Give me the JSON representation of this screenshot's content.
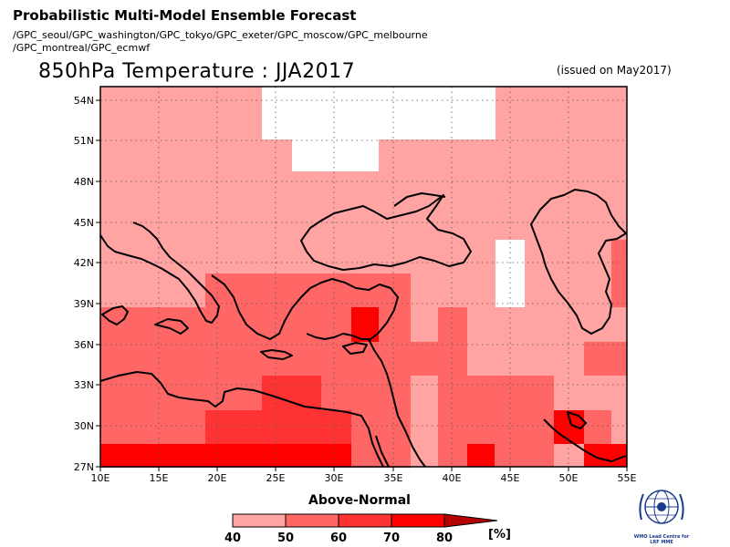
{
  "header": {
    "title": "Probabilistic Multi-Model Ensemble Forecast",
    "models_line1": "/GPC_seoul/GPC_washington/GPC_tokyo/GPC_exeter/GPC_moscow/GPC_melbourne",
    "models_line2": "/GPC_montreal/GPC_ecmwf",
    "subtitle": "850hPa Temperature : JJA2017",
    "issued": "(issued on May2017)"
  },
  "map": {
    "lon_range": [
      10,
      55
    ],
    "lat_range": [
      27,
      55
    ],
    "lon_ticks": [
      "10E",
      "15E",
      "20E",
      "25E",
      "30E",
      "35E",
      "40E",
      "45E",
      "50E",
      "55E"
    ],
    "lat_ticks": [
      "27N",
      "30N",
      "33N",
      "36N",
      "39N",
      "42N",
      "45N",
      "48N",
      "51N",
      "54N"
    ],
    "grid": "dotted"
  },
  "legend": {
    "title": "Above-Normal",
    "unit": "[%]",
    "labels": [
      "40",
      "50",
      "60",
      "70",
      "80"
    ],
    "colors": [
      "#ffa3a3",
      "#ff6666",
      "#ff3333",
      "#ff0000",
      "#b30000"
    ]
  },
  "logo": {
    "text_line1": "WMO Lead Centre for",
    "text_line2": "LRF MME"
  }
}
